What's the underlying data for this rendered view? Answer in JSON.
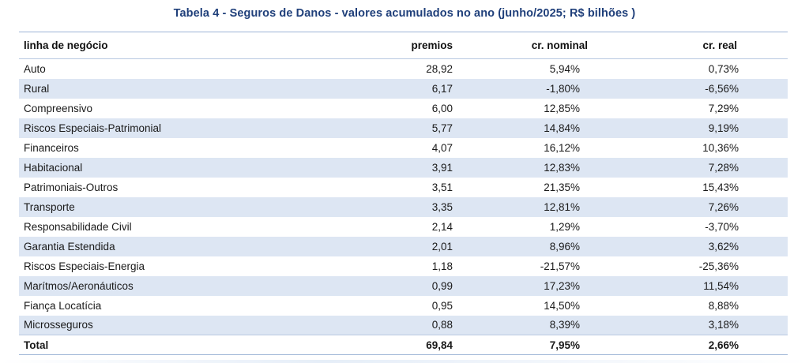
{
  "title": "Tabela 4 - Seguros de Danos - valores acumulados no ano (junho/2025; R$ bilhões )",
  "columns": {
    "line": "linha de negócio",
    "premios": "premios",
    "nominal": "cr. nominal",
    "real": "cr. real"
  },
  "rows": [
    {
      "line": "Auto",
      "premios": "28,92",
      "nominal": "5,94%",
      "real": "0,73%"
    },
    {
      "line": "Rural",
      "premios": "6,17",
      "nominal": "-1,80%",
      "real": "-6,56%"
    },
    {
      "line": "Compreensivo",
      "premios": "6,00",
      "nominal": "12,85%",
      "real": "7,29%"
    },
    {
      "line": "Riscos Especiais-Patrimonial",
      "premios": "5,77",
      "nominal": "14,84%",
      "real": "9,19%"
    },
    {
      "line": "Financeiros",
      "premios": "4,07",
      "nominal": "16,12%",
      "real": "10,36%"
    },
    {
      "line": "Habitacional",
      "premios": "3,91",
      "nominal": "12,83%",
      "real": "7,28%"
    },
    {
      "line": "Patrimoniais-Outros",
      "premios": "3,51",
      "nominal": "21,35%",
      "real": "15,43%"
    },
    {
      "line": "Transporte",
      "premios": "3,35",
      "nominal": "12,81%",
      "real": "7,26%"
    },
    {
      "line": "Responsabilidade Civil",
      "premios": "2,14",
      "nominal": "1,29%",
      "real": "-3,70%"
    },
    {
      "line": "Garantia Estendida",
      "premios": "2,01",
      "nominal": "8,96%",
      "real": "3,62%"
    },
    {
      "line": "Riscos Especiais-Energia",
      "premios": "1,18",
      "nominal": "-21,57%",
      "real": "-25,36%"
    },
    {
      "line": "Marítmos/Aeronáuticos",
      "premios": "0,99",
      "nominal": "17,23%",
      "real": "11,54%"
    },
    {
      "line": "Fiança Locatícia",
      "premios": "0,95",
      "nominal": "14,50%",
      "real": "8,88%"
    },
    {
      "line": "Microsseguros",
      "premios": "0,88",
      "nominal": "8,39%",
      "real": "3,18%"
    }
  ],
  "total": {
    "line": "Total",
    "premios": "69,84",
    "nominal": "7,95%",
    "real": "2,66%"
  },
  "colors": {
    "title": "#1f3f7a",
    "stripe": "#dde6f3",
    "rule": "#9db4d6"
  }
}
